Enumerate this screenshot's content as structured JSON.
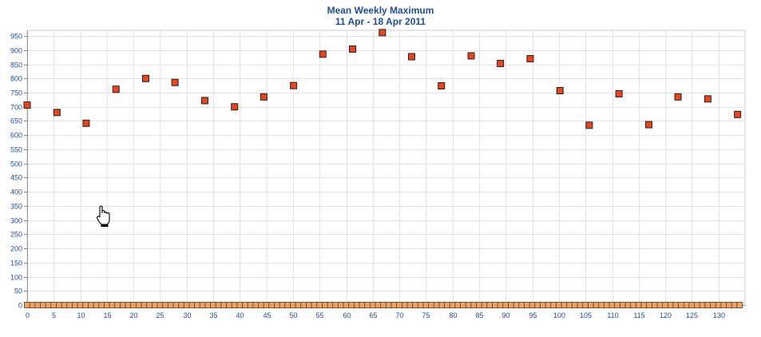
{
  "chart_data": {
    "type": "scatter",
    "title": "Mean Weekly Maximum",
    "subtitle": "11 Apr - 18 Apr 2011",
    "xlabel": "",
    "ylabel": "",
    "xlim": [
      0,
      135
    ],
    "ylim": [
      0,
      970
    ],
    "xticks": [
      0,
      5,
      10,
      15,
      20,
      25,
      30,
      35,
      40,
      45,
      50,
      55,
      60,
      65,
      70,
      75,
      80,
      85,
      90,
      95,
      100,
      105,
      110,
      115,
      120,
      125,
      130
    ],
    "yticks": [
      0,
      50,
      100,
      150,
      200,
      250,
      300,
      350,
      400,
      450,
      500,
      550,
      600,
      650,
      700,
      750,
      800,
      850,
      900,
      950
    ],
    "grid": true,
    "series": [
      {
        "color": "#e8441e",
        "points": [
          [
            0,
            706
          ],
          [
            5.6,
            680
          ],
          [
            11.1,
            642
          ],
          [
            16.7,
            762
          ],
          [
            22.3,
            800
          ],
          [
            27.8,
            786
          ],
          [
            33.4,
            722
          ],
          [
            39,
            700
          ],
          [
            44.5,
            735
          ],
          [
            50.1,
            775
          ],
          [
            55.6,
            886
          ],
          [
            61.2,
            904
          ],
          [
            66.8,
            962
          ],
          [
            72.3,
            877
          ],
          [
            77.9,
            774
          ],
          [
            83.5,
            880
          ],
          [
            89,
            853
          ],
          [
            94.6,
            870
          ],
          [
            100.2,
            757
          ],
          [
            105.7,
            635
          ],
          [
            111.3,
            746
          ],
          [
            116.9,
            637
          ],
          [
            122.4,
            735
          ],
          [
            128,
            728
          ],
          [
            133.6,
            673
          ]
        ]
      },
      {
        "color": "#f0a060",
        "baseline_value": 0,
        "count": 135
      }
    ]
  }
}
